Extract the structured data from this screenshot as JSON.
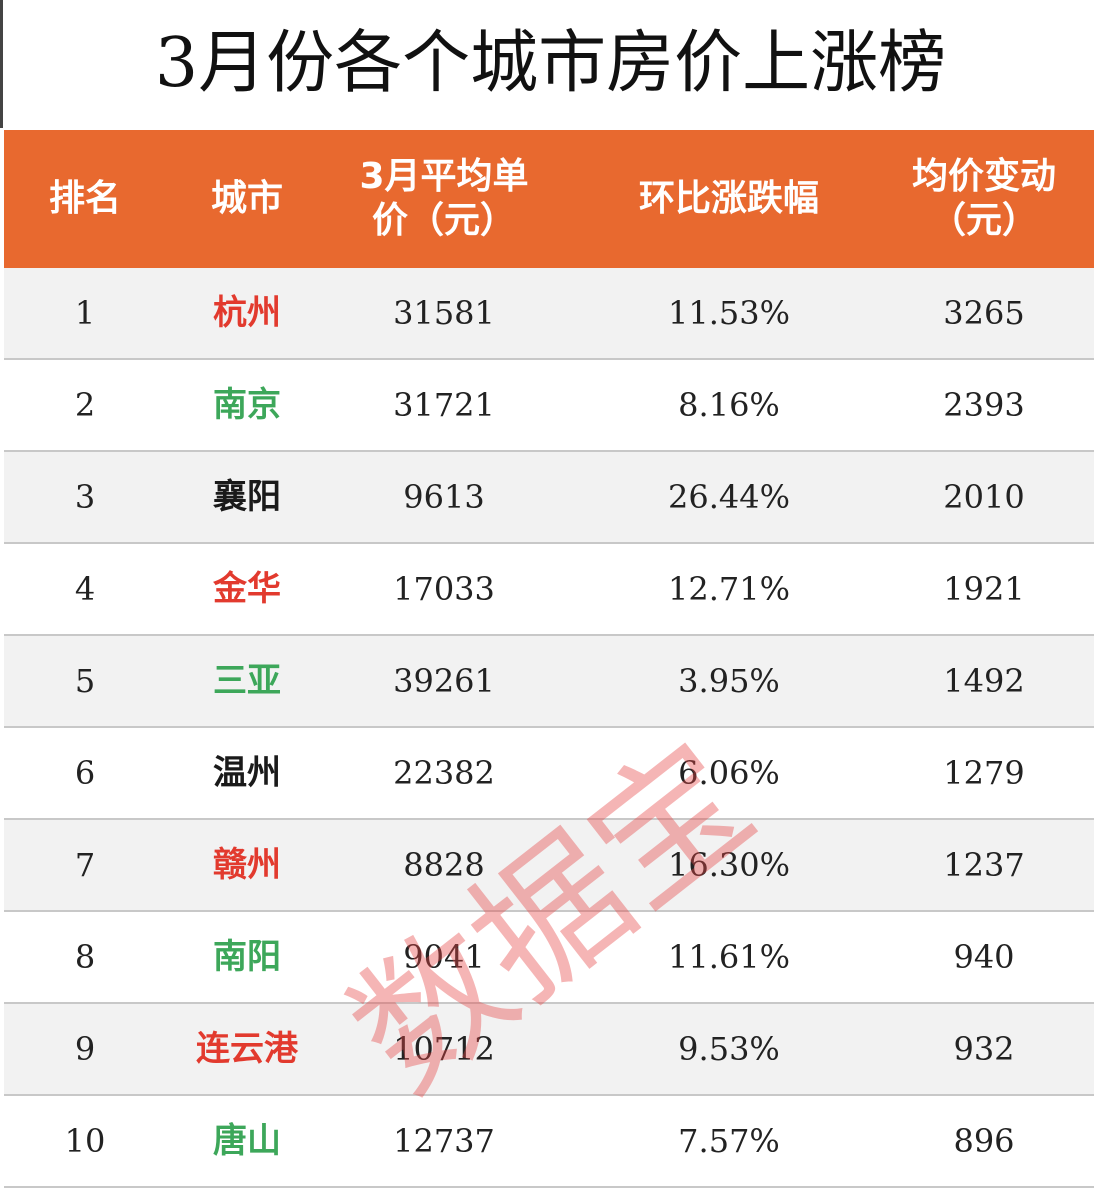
{
  "header": {
    "title": "3月份各个城市房价上涨榜"
  },
  "table": {
    "headers": [
      [
        "排名"
      ],
      [
        "城市"
      ],
      [
        "3月平均单",
        "价（元）"
      ],
      [
        "环比涨跌幅"
      ],
      [
        "均价变动",
        "（元）"
      ]
    ],
    "rows": [
      {
        "rank": "1",
        "city": "杭州",
        "city_color": "#e23a2e",
        "price": "31581",
        "change": "11.53%",
        "delta": "3265"
      },
      {
        "rank": "2",
        "city": "南京",
        "city_color": "#3da75a",
        "price": "31721",
        "change": "8.16%",
        "delta": "2393"
      },
      {
        "rank": "3",
        "city": "襄阳",
        "city_color": "#1a1a1a",
        "price": "9613",
        "change": "26.44%",
        "delta": "2010"
      },
      {
        "rank": "4",
        "city": "金华",
        "city_color": "#e23a2e",
        "price": "17033",
        "change": "12.71%",
        "delta": "1921"
      },
      {
        "rank": "5",
        "city": "三亚",
        "city_color": "#3da75a",
        "price": "39261",
        "change": "3.95%",
        "delta": "1492"
      },
      {
        "rank": "6",
        "city": "温州",
        "city_color": "#1a1a1a",
        "price": "22382",
        "change": "6.06%",
        "delta": "1279"
      },
      {
        "rank": "7",
        "city": "赣州",
        "city_color": "#e23a2e",
        "price": "8828",
        "change": "16.30%",
        "delta": "1237"
      },
      {
        "rank": "8",
        "city": "南阳",
        "city_color": "#3da75a",
        "price": "9041",
        "change": "11.61%",
        "delta": "940"
      },
      {
        "rank": "9",
        "city": "连云港",
        "city_color": "#e23a2e",
        "price": "10712",
        "change": "9.53%",
        "delta": "932"
      },
      {
        "rank": "10",
        "city": "唐山",
        "city_color": "#3da75a",
        "price": "12737",
        "change": "7.57%",
        "delta": "896"
      }
    ]
  },
  "watermark": "数据宝"
}
